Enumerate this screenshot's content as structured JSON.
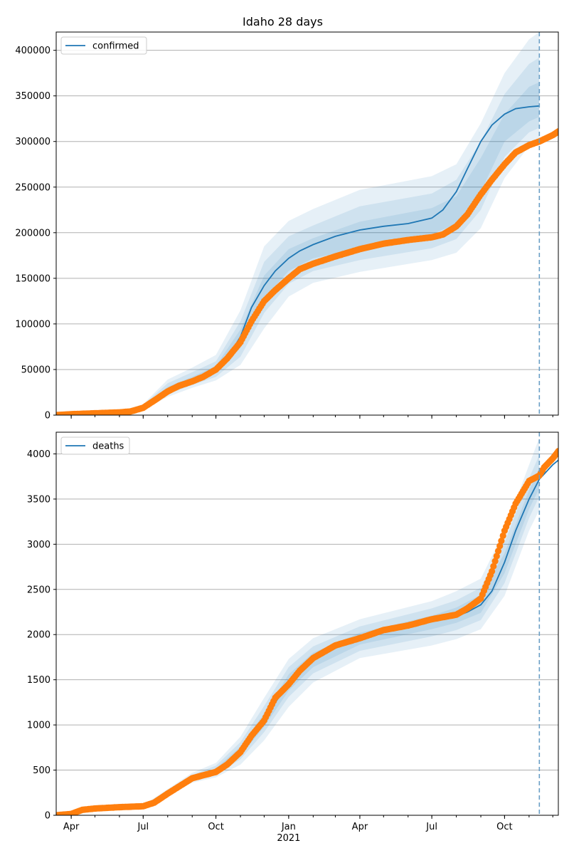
{
  "title": "Idaho 28 days",
  "colors": {
    "fit_line": "#1f77b4",
    "observed": "#ff7f0e",
    "band": "#1f77b4",
    "grid": "#b0b0b0",
    "vline": "#6a9fc6"
  },
  "chart_data": [
    {
      "type": "line",
      "name": "confirmed-panel",
      "legend": "confirmed",
      "legend_position": "top-left",
      "ylim": [
        0,
        420000
      ],
      "yticks": [
        0,
        50000,
        100000,
        150000,
        200000,
        250000,
        300000,
        350000,
        400000
      ],
      "ytick_labels": [
        "0",
        "50000",
        "100000",
        "150000",
        "200000",
        "250000",
        "300000",
        "350000",
        "400000"
      ],
      "grid": "y",
      "forecast_cutoff": "2021-11-14",
      "fit": {
        "x": [
          "2020-03-13",
          "2020-04-01",
          "2020-05-01",
          "2020-06-01",
          "2020-06-15",
          "2020-07-01",
          "2020-07-15",
          "2020-08-01",
          "2020-08-15",
          "2020-09-01",
          "2020-09-15",
          "2020-10-01",
          "2020-10-15",
          "2020-11-01",
          "2020-11-15",
          "2020-12-01",
          "2020-12-15",
          "2021-01-01",
          "2021-01-15",
          "2021-02-01",
          "2021-03-01",
          "2021-04-01",
          "2021-05-01",
          "2021-06-01",
          "2021-07-01",
          "2021-07-15",
          "2021-08-01",
          "2021-08-15",
          "2021-09-01",
          "2021-09-15",
          "2021-10-01",
          "2021-10-15",
          "2021-11-01",
          "2021-11-14"
        ],
        "y": [
          0,
          1500,
          2500,
          3000,
          4500,
          9000,
          17000,
          28000,
          35000,
          39000,
          43000,
          50000,
          62000,
          86000,
          118000,
          142000,
          158000,
          172000,
          180000,
          187000,
          196000,
          203000,
          207000,
          210000,
          216000,
          225000,
          245000,
          270000,
          300000,
          318000,
          330000,
          336000,
          338000,
          339000
        ]
      },
      "bands": [
        {
          "name": "outer",
          "x": [
            "2020-03-13",
            "2020-06-01",
            "2020-07-01",
            "2020-08-01",
            "2020-09-01",
            "2020-10-01",
            "2020-11-01",
            "2020-12-01",
            "2021-01-01",
            "2021-02-01",
            "2021-04-01",
            "2021-07-01",
            "2021-08-01",
            "2021-09-01",
            "2021-10-01",
            "2021-11-01",
            "2021-11-14"
          ],
          "lower": [
            0,
            2000,
            6000,
            20000,
            30000,
            38000,
            55000,
            95000,
            130000,
            145000,
            157000,
            170000,
            178000,
            205000,
            260000,
            295000,
            300000
          ],
          "upper": [
            0,
            4000,
            12000,
            39000,
            52000,
            66000,
            115000,
            185000,
            213000,
            226000,
            247000,
            262000,
            275000,
            320000,
            375000,
            412000,
            420000
          ]
        },
        {
          "name": "middle",
          "x": [
            "2020-03-13",
            "2020-06-01",
            "2020-07-01",
            "2020-08-01",
            "2020-09-01",
            "2020-10-01",
            "2020-11-01",
            "2020-12-01",
            "2021-01-01",
            "2021-02-01",
            "2021-04-01",
            "2021-07-01",
            "2021-08-01",
            "2021-09-01",
            "2021-10-01",
            "2021-11-01",
            "2021-11-14"
          ],
          "lower": [
            0,
            2300,
            7000,
            23000,
            33000,
            42000,
            64000,
            112000,
            144000,
            158000,
            170000,
            183000,
            193000,
            225000,
            283000,
            310000,
            315000
          ],
          "upper": [
            0,
            3700,
            11000,
            35000,
            47000,
            59000,
            103000,
            168000,
            196000,
            208000,
            229000,
            243000,
            258000,
            300000,
            352000,
            385000,
            392000
          ]
        },
        {
          "name": "inner",
          "x": [
            "2020-03-13",
            "2020-06-01",
            "2020-07-01",
            "2020-08-01",
            "2020-09-01",
            "2020-10-01",
            "2020-11-01",
            "2020-12-01",
            "2021-01-01",
            "2021-02-01",
            "2021-04-01",
            "2021-07-01",
            "2021-08-01",
            "2021-09-01",
            "2021-10-01",
            "2021-11-01",
            "2021-11-14"
          ],
          "lower": [
            0,
            2700,
            8000,
            26000,
            36000,
            46000,
            74000,
            128000,
            158000,
            172000,
            183000,
            198000,
            210000,
            245000,
            300000,
            322000,
            327000
          ],
          "upper": [
            0,
            3300,
            10000,
            31000,
            42000,
            54000,
            94000,
            153000,
            182000,
            194000,
            212000,
            227000,
            240000,
            282000,
            330000,
            360000,
            365000
          ]
        }
      ],
      "observed": {
        "x": [
          "2020-03-13",
          "2020-04-01",
          "2020-05-01",
          "2020-06-01",
          "2020-06-15",
          "2020-07-01",
          "2020-07-15",
          "2020-08-01",
          "2020-08-15",
          "2020-09-01",
          "2020-09-15",
          "2020-10-01",
          "2020-10-15",
          "2020-11-01",
          "2020-11-15",
          "2020-12-01",
          "2020-12-15",
          "2021-01-01",
          "2021-01-15",
          "2021-02-01",
          "2021-03-01",
          "2021-04-01",
          "2021-05-01",
          "2021-06-01",
          "2021-07-01",
          "2021-07-15",
          "2021-08-01",
          "2021-08-15",
          "2021-09-01",
          "2021-09-15",
          "2021-10-01",
          "2021-10-15",
          "2021-11-01",
          "2021-11-14",
          "2021-12-01",
          "2021-12-08"
        ],
        "y": [
          0,
          1000,
          2000,
          3000,
          4000,
          8000,
          16000,
          26000,
          32000,
          37000,
          42000,
          50000,
          62000,
          80000,
          103000,
          125000,
          137000,
          150000,
          160000,
          166000,
          174000,
          182000,
          188000,
          192000,
          195000,
          198000,
          207000,
          220000,
          242000,
          258000,
          275000,
          288000,
          296000,
          300000,
          307000,
          311000
        ]
      }
    },
    {
      "type": "line",
      "name": "deaths-panel",
      "legend": "deaths",
      "legend_position": "top-left",
      "ylim": [
        0,
        4240
      ],
      "yticks": [
        0,
        500,
        1000,
        1500,
        2000,
        2500,
        3000,
        3500,
        4000
      ],
      "ytick_labels": [
        "0",
        "500",
        "1000",
        "1500",
        "2000",
        "2500",
        "3000",
        "3500",
        "4000"
      ],
      "xticks": [
        "2020-04-01",
        "2020-07-01",
        "2020-10-01",
        "2021-01-01",
        "2021-04-01",
        "2021-07-01",
        "2021-10-01"
      ],
      "xtick_labels": [
        "Apr",
        "Jul",
        "Oct",
        "Jan",
        "Apr",
        "Jul",
        "Oct"
      ],
      "xtick_sublabel": {
        "date": "2021-01-01",
        "text": "2021"
      },
      "xlim": [
        "2020-03-13",
        "2021-12-08"
      ],
      "grid": "y",
      "forecast_cutoff": "2021-11-14",
      "fit": {
        "x": [
          "2020-03-13",
          "2020-04-01",
          "2020-05-01",
          "2020-06-01",
          "2020-07-01",
          "2020-07-15",
          "2020-08-01",
          "2020-09-01",
          "2020-10-01",
          "2020-10-15",
          "2020-11-01",
          "2020-11-15",
          "2020-12-01",
          "2020-12-15",
          "2021-01-01",
          "2021-02-01",
          "2021-03-01",
          "2021-04-01",
          "2021-05-01",
          "2021-06-01",
          "2021-07-01",
          "2021-08-01",
          "2021-08-15",
          "2021-09-01",
          "2021-09-15",
          "2021-10-01",
          "2021-10-15",
          "2021-11-01",
          "2021-11-14",
          "2021-12-01",
          "2021-12-08"
        ],
        "y": [
          0,
          10,
          60,
          85,
          95,
          130,
          260,
          410,
          490,
          560,
          700,
          860,
          1050,
          1250,
          1450,
          1720,
          1850,
          1950,
          2030,
          2090,
          2150,
          2200,
          2250,
          2330,
          2480,
          2800,
          3150,
          3500,
          3720,
          3880,
          3930
        ]
      },
      "bands": [
        {
          "name": "outer",
          "x": [
            "2020-03-13",
            "2020-06-01",
            "2020-07-01",
            "2020-08-01",
            "2020-09-01",
            "2020-10-01",
            "2020-11-01",
            "2020-12-01",
            "2021-01-01",
            "2021-02-01",
            "2021-04-01",
            "2021-07-01",
            "2021-08-01",
            "2021-09-01",
            "2021-10-01",
            "2021-11-01",
            "2021-11-14"
          ],
          "lower": [
            0,
            75,
            85,
            230,
            360,
            420,
            560,
            830,
            1200,
            1470,
            1740,
            1880,
            1950,
            2060,
            2430,
            3150,
            3380
          ],
          "upper": [
            0,
            95,
            110,
            290,
            470,
            580,
            870,
            1300,
            1730,
            1960,
            2170,
            2370,
            2480,
            2620,
            3150,
            3880,
            4180
          ]
        },
        {
          "name": "middle",
          "x": [
            "2020-03-13",
            "2020-06-01",
            "2020-07-01",
            "2020-08-01",
            "2020-09-01",
            "2020-10-01",
            "2020-11-01",
            "2020-12-01",
            "2021-01-01",
            "2021-02-01",
            "2021-04-01",
            "2021-07-01",
            "2021-08-01",
            "2021-09-01",
            "2021-10-01",
            "2021-11-01",
            "2021-11-14"
          ],
          "lower": [
            0,
            78,
            88,
            240,
            380,
            450,
            620,
            920,
            1310,
            1570,
            1820,
            1980,
            2050,
            2160,
            2570,
            3290,
            3530
          ],
          "upper": [
            0,
            92,
            105,
            280,
            445,
            550,
            810,
            1210,
            1640,
            1870,
            2090,
            2290,
            2380,
            2520,
            3020,
            3730,
            3990
          ]
        },
        {
          "name": "inner",
          "x": [
            "2020-03-13",
            "2020-06-01",
            "2020-07-01",
            "2020-08-01",
            "2020-09-01",
            "2020-10-01",
            "2020-11-01",
            "2020-12-01",
            "2021-01-01",
            "2021-02-01",
            "2021-04-01",
            "2021-07-01",
            "2021-08-01",
            "2021-09-01",
            "2021-10-01",
            "2021-11-01",
            "2021-11-14"
          ],
          "lower": [
            0,
            81,
            91,
            250,
            395,
            470,
            660,
            980,
            1380,
            1640,
            1890,
            2060,
            2130,
            2240,
            2680,
            3390,
            3620
          ],
          "upper": [
            0,
            89,
            100,
            270,
            425,
            520,
            760,
            1130,
            1560,
            1800,
            2020,
            2210,
            2300,
            2440,
            2900,
            3600,
            3840
          ]
        }
      ],
      "observed": {
        "x": [
          "2020-03-13",
          "2020-04-01",
          "2020-04-15",
          "2020-05-01",
          "2020-06-01",
          "2020-07-01",
          "2020-07-15",
          "2020-08-01",
          "2020-09-01",
          "2020-10-01",
          "2020-10-15",
          "2020-11-01",
          "2020-11-15",
          "2020-12-01",
          "2020-12-15",
          "2021-01-01",
          "2021-01-15",
          "2021-02-01",
          "2021-03-01",
          "2021-04-01",
          "2021-05-01",
          "2021-06-01",
          "2021-07-01",
          "2021-08-01",
          "2021-08-15",
          "2021-09-01",
          "2021-09-15",
          "2021-10-01",
          "2021-10-15",
          "2021-11-01",
          "2021-11-14",
          "2021-11-20",
          "2021-12-01",
          "2021-12-08"
        ],
        "y": [
          0,
          15,
          60,
          75,
          90,
          100,
          140,
          240,
          410,
          480,
          560,
          700,
          880,
          1050,
          1300,
          1450,
          1600,
          1740,
          1880,
          1960,
          2050,
          2100,
          2170,
          2220,
          2290,
          2400,
          2700,
          3150,
          3450,
          3700,
          3760,
          3850,
          3950,
          4030
        ]
      }
    }
  ]
}
